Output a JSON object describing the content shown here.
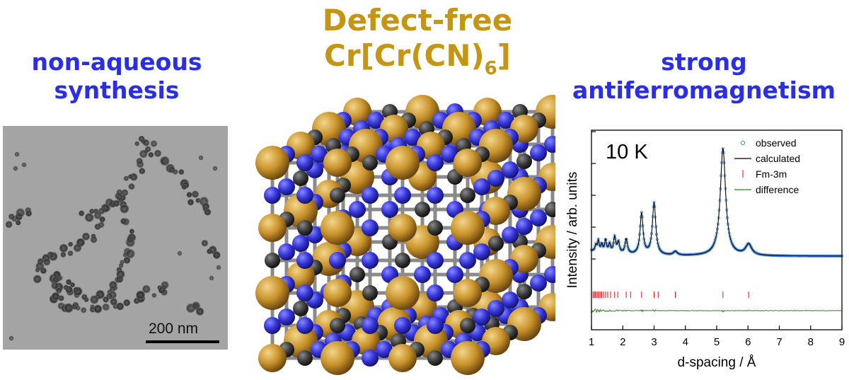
{
  "left_heading": {
    "line1": "non-aqueous",
    "line2": "synthesis"
  },
  "center_heading": {
    "line1": "Defect-free",
    "formula_main": "Cr[Cr(CN)",
    "formula_sub": "6",
    "formula_end": "]"
  },
  "right_heading": {
    "line1": "strong",
    "line2": "antiferromagnetism"
  },
  "tem_image": {
    "scale_bar_label": "200 nm"
  },
  "colors": {
    "heading_blue": "#2a2ee8",
    "heading_gold": "#c49614",
    "atom_gold": "#c8922a",
    "atom_blue": "#3434d8",
    "atom_dark": "#3c3c3c",
    "observed": "#4a8fe0",
    "calculated": "#000000",
    "ticks": "#e01010",
    "difference": "#2a8a1a"
  },
  "chart_data": {
    "type": "line",
    "annotation": "10 K",
    "xlabel": "d-spacing / Å",
    "ylabel": "Intensity / arb. units",
    "xlim": [
      1,
      9
    ],
    "x_ticks": [
      "1",
      "2",
      "3",
      "4",
      "5",
      "6",
      "7",
      "8",
      "9"
    ],
    "legend": {
      "placement": "top-right",
      "entries": [
        "observed",
        "calculated",
        "Fm-3m",
        "difference"
      ]
    },
    "background_level": 0.07,
    "peaks": [
      {
        "d": 1.14,
        "height": 0.05
      },
      {
        "d": 1.22,
        "height": 0.09
      },
      {
        "d": 1.33,
        "height": 0.06
      },
      {
        "d": 1.45,
        "height": 0.1
      },
      {
        "d": 1.58,
        "height": 0.07
      },
      {
        "d": 1.74,
        "height": 0.13
      },
      {
        "d": 1.86,
        "height": 0.09
      },
      {
        "d": 2.11,
        "height": 0.12
      },
      {
        "d": 2.6,
        "height": 0.34
      },
      {
        "d": 3.0,
        "height": 0.43
      },
      {
        "d": 3.68,
        "height": 0.03
      },
      {
        "d": 5.2,
        "height": 0.88
      },
      {
        "d": 6.02,
        "height": 0.09
      }
    ],
    "reflection_ticks": [
      1.05,
      1.09,
      1.12,
      1.16,
      1.2,
      1.24,
      1.29,
      1.33,
      1.39,
      1.45,
      1.52,
      1.61,
      1.74,
      1.84,
      2.11,
      2.25,
      2.6,
      3.0,
      3.13,
      3.68,
      5.2,
      6.02
    ]
  }
}
